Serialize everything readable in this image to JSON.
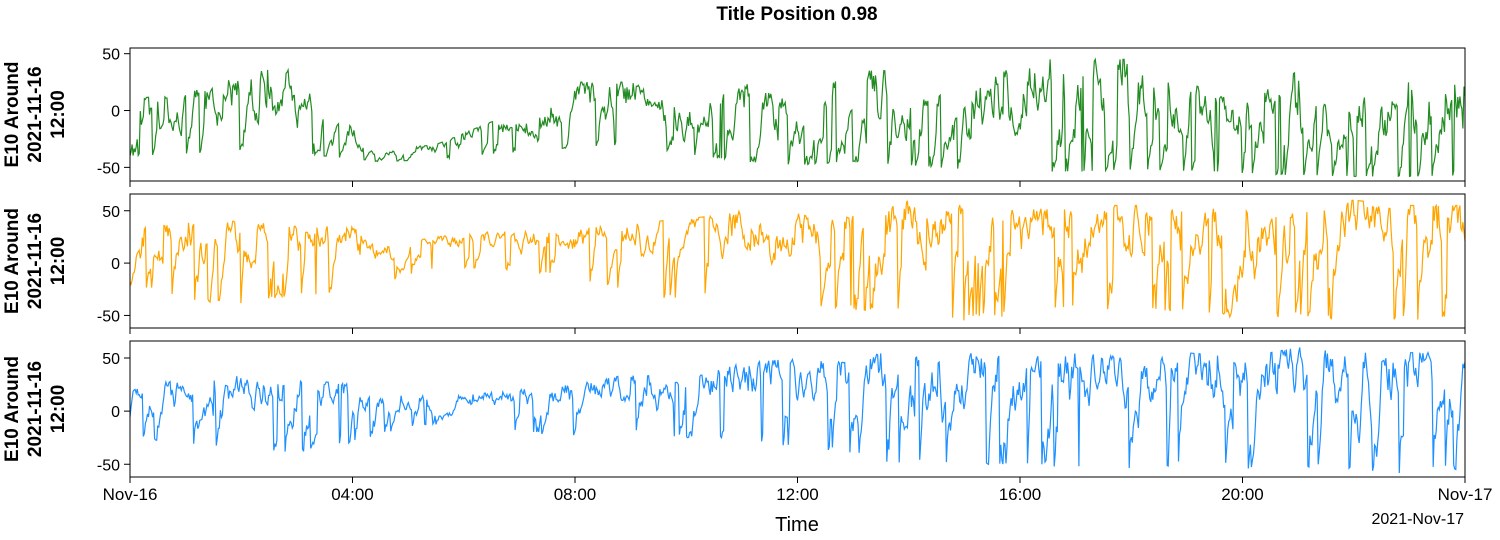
{
  "figure": {
    "title": "Title Position 0.98",
    "xlabel": "Time",
    "date_label": "2021-Nov-17"
  },
  "chart_data": {
    "type": "line",
    "x_axis": {
      "range": [
        "2021-11-16T00:00",
        "2021-11-17T00:00"
      ],
      "ticks": [
        {
          "t": "2021-11-16T00:00",
          "label": "Nov-16"
        },
        {
          "t": "2021-11-16T04:00",
          "label": "04:00"
        },
        {
          "t": "2021-11-16T08:00",
          "label": "08:00"
        },
        {
          "t": "2021-11-16T12:00",
          "label": "12:00"
        },
        {
          "t": "2021-11-16T16:00",
          "label": "16:00"
        },
        {
          "t": "2021-11-16T20:00",
          "label": "20:00"
        },
        {
          "t": "2021-11-17T00:00",
          "label": "Nov-17"
        }
      ]
    },
    "panels": [
      {
        "ylabel": [
          "E10 Around",
          "2021-11-16",
          "12:00"
        ],
        "ylim": [
          -62,
          55
        ],
        "yticks": [
          -50,
          0,
          50
        ],
        "color": "#228b22",
        "envelope": {
          "x": [
            "2021-11-16T00:00",
            "2021-11-16T01:00",
            "2021-11-16T02:00",
            "2021-11-16T02:45",
            "2021-11-16T03:30",
            "2021-11-16T04:30",
            "2021-11-16T05:30",
            "2021-11-16T06:30",
            "2021-11-16T07:30",
            "2021-11-16T08:00",
            "2021-11-16T09:00",
            "2021-11-16T10:00",
            "2021-11-16T11:00",
            "2021-11-16T12:00",
            "2021-11-16T13:00",
            "2021-11-16T14:00",
            "2021-11-16T15:00",
            "2021-11-16T16:00",
            "2021-11-16T17:00",
            "2021-11-16T18:00",
            "2021-11-16T19:00",
            "2021-11-16T20:00",
            "2021-11-16T21:00",
            "2021-11-16T22:00",
            "2021-11-16T23:00",
            "2021-11-17T00:00"
          ],
          "base": [
            -40,
            -38,
            -35,
            -35,
            -40,
            -45,
            -43,
            -38,
            -35,
            -32,
            -30,
            -38,
            -45,
            -48,
            -45,
            -48,
            -52,
            -55,
            -54,
            -52,
            -53,
            -55,
            -57,
            -58,
            -58,
            -57
          ],
          "peak": [
            10,
            15,
            30,
            40,
            5,
            -35,
            -30,
            -10,
            0,
            25,
            25,
            5,
            25,
            5,
            35,
            35,
            10,
            45,
            45,
            45,
            25,
            5,
            35,
            10,
            25,
            30
          ]
        }
      },
      {
        "ylabel": [
          "E10 Around",
          "2021-11-16",
          "12:00"
        ],
        "ylim": [
          -62,
          66
        ],
        "yticks": [
          -50,
          0,
          50
        ],
        "color": "#ffa500",
        "envelope": {
          "x": [
            "2021-11-16T00:00",
            "2021-11-16T01:00",
            "2021-11-16T02:00",
            "2021-11-16T03:00",
            "2021-11-16T04:00",
            "2021-11-16T04:30",
            "2021-11-16T05:30",
            "2021-11-16T06:30",
            "2021-11-16T07:30",
            "2021-11-16T08:30",
            "2021-11-16T09:30",
            "2021-11-16T10:30",
            "2021-11-16T11:30",
            "2021-11-16T12:30",
            "2021-11-16T13:30",
            "2021-11-16T14:00",
            "2021-11-16T15:00",
            "2021-11-16T16:00",
            "2021-11-16T17:00",
            "2021-11-16T18:00",
            "2021-11-16T19:00",
            "2021-11-16T20:00",
            "2021-11-16T21:00",
            "2021-11-16T22:00",
            "2021-11-16T23:00",
            "2021-11-17T00:00"
          ],
          "base": [
            -20,
            -35,
            -40,
            -30,
            -30,
            -20,
            -5,
            -5,
            -10,
            -20,
            -35,
            -30,
            -40,
            -45,
            -45,
            -50,
            -55,
            -50,
            -45,
            -50,
            -45,
            -55,
            -50,
            -55,
            -55,
            -50
          ],
          "peak": [
            35,
            40,
            40,
            35,
            35,
            15,
            25,
            30,
            30,
            35,
            40,
            45,
            55,
            40,
            50,
            60,
            55,
            50,
            55,
            55,
            55,
            55,
            55,
            60,
            55,
            55
          ]
        }
      },
      {
        "ylabel": [
          "E10 Around",
          "2021-11-16",
          "12:00"
        ],
        "ylim": [
          -62,
          66
        ],
        "yticks": [
          -50,
          0,
          50
        ],
        "color": "#1e90ff",
        "envelope": {
          "x": [
            "2021-11-16T00:00",
            "2021-11-16T01:00",
            "2021-11-16T02:00",
            "2021-11-16T03:00",
            "2021-11-16T04:00",
            "2021-11-16T05:00",
            "2021-11-16T06:00",
            "2021-11-16T07:00",
            "2021-11-16T08:00",
            "2021-11-16T09:00",
            "2021-11-16T10:00",
            "2021-11-16T11:00",
            "2021-11-16T12:00",
            "2021-11-16T13:00",
            "2021-11-16T13:30",
            "2021-11-16T14:00",
            "2021-11-16T15:00",
            "2021-11-16T16:00",
            "2021-11-16T17:00",
            "2021-11-16T18:00",
            "2021-11-16T19:00",
            "2021-11-16T20:00",
            "2021-11-16T21:00",
            "2021-11-16T22:00",
            "2021-11-16T23:00",
            "2021-11-17T00:00"
          ],
          "base": [
            -25,
            -30,
            -35,
            -40,
            -30,
            -15,
            -10,
            -20,
            -25,
            -20,
            -25,
            -25,
            -35,
            -40,
            -50,
            -50,
            -50,
            -50,
            -55,
            -55,
            -50,
            -55,
            -55,
            -55,
            -60,
            -55
          ],
          "peak": [
            35,
            35,
            35,
            30,
            25,
            15,
            15,
            20,
            25,
            35,
            30,
            45,
            50,
            45,
            55,
            50,
            55,
            50,
            55,
            50,
            55,
            50,
            60,
            55,
            55,
            55
          ]
        }
      }
    ]
  }
}
